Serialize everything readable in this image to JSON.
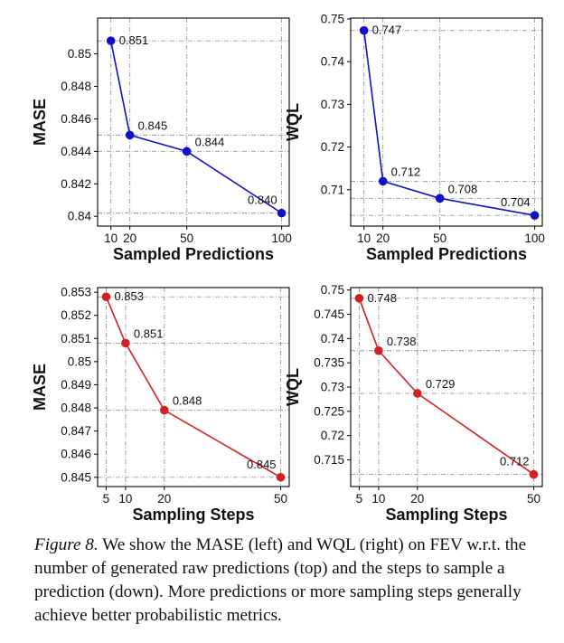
{
  "chart_data": [
    {
      "type": "line",
      "position": "top-left",
      "xlabel": "Sampled Predictions",
      "ylabel": "MASE",
      "x": [
        10,
        20,
        50,
        100
      ],
      "xticks": [
        "10",
        "20",
        "50",
        "100"
      ],
      "xlim": [
        3,
        104
      ],
      "ylim": [
        0.8394,
        0.8522
      ],
      "yticks": [
        "0.84",
        "0.842",
        "0.844",
        "0.846",
        "0.848",
        "0.85"
      ],
      "ytick_values": [
        0.84,
        0.842,
        0.844,
        0.846,
        0.848,
        0.85
      ],
      "series": [
        {
          "name": "MASE",
          "color": "#1010c8",
          "values": [
            0.8508,
            0.845,
            0.844,
            0.8402
          ],
          "labels": [
            "0.851",
            "0.845",
            "0.844",
            "0.840"
          ]
        }
      ]
    },
    {
      "type": "line",
      "position": "top-right",
      "xlabel": "Sampled Predictions",
      "ylabel": "WQL",
      "x": [
        10,
        20,
        50,
        100
      ],
      "xticks": [
        "10",
        "20",
        "50",
        "100"
      ],
      "xlim": [
        3,
        104
      ],
      "ylim": [
        0.7015,
        0.7502
      ],
      "yticks": [
        "0.71",
        "0.72",
        "0.73",
        "0.74",
        "0.75"
      ],
      "ytick_values": [
        0.71,
        0.72,
        0.73,
        0.74,
        0.75
      ],
      "series": [
        {
          "name": "WQL",
          "color": "#1010c8",
          "values": [
            0.7473,
            0.712,
            0.708,
            0.704
          ],
          "labels": [
            "0.747",
            "0.712",
            "0.708",
            "0.704"
          ]
        }
      ]
    },
    {
      "type": "line",
      "position": "bottom-left",
      "xlabel": "Sampling Steps",
      "ylabel": "MASE",
      "x": [
        5,
        10,
        20,
        50
      ],
      "xticks": [
        "5",
        "10",
        "20",
        "50"
      ],
      "xlim": [
        2.8,
        52.2
      ],
      "ylim": [
        0.8446,
        0.8532
      ],
      "yticks": [
        "0.845",
        "0.846",
        "0.847",
        "0.848",
        "0.849",
        "0.85",
        "0.851",
        "0.852",
        "0.853"
      ],
      "ytick_values": [
        0.845,
        0.846,
        0.847,
        0.848,
        0.849,
        0.85,
        0.851,
        0.852,
        0.853
      ],
      "series": [
        {
          "name": "MASE",
          "color": "#d42020",
          "values": [
            0.8528,
            0.8508,
            0.8479,
            0.845
          ],
          "labels": [
            "0.853",
            "0.851",
            "0.848",
            "0.845"
          ]
        }
      ]
    },
    {
      "type": "line",
      "position": "bottom-right",
      "xlabel": "Sampling Steps",
      "ylabel": "WQL",
      "x": [
        5,
        10,
        20,
        50
      ],
      "xticks": [
        "5",
        "10",
        "20",
        "50"
      ],
      "xlim": [
        2.8,
        52.2
      ],
      "ylim": [
        0.7095,
        0.7505
      ],
      "yticks": [
        "0.715",
        "0.72",
        "0.725",
        "0.73",
        "0.735",
        "0.74",
        "0.745",
        "0.75"
      ],
      "ytick_values": [
        0.715,
        0.72,
        0.725,
        0.73,
        0.735,
        0.74,
        0.745,
        0.75
      ],
      "series": [
        {
          "name": "WQL",
          "color": "#d42020",
          "values": [
            0.7483,
            0.7375,
            0.7287,
            0.712
          ],
          "labels": [
            "0.748",
            "0.738",
            "0.729",
            "0.712"
          ]
        }
      ]
    }
  ],
  "caption": {
    "label": "Figure 8.",
    "text": " We show the MASE (left) and WQL (right) on FEV w.r.t. the number of generated raw predictions (top) and the steps to sample a prediction (down). More predictions or more sampling steps generally achieve better probabilistic metrics."
  }
}
